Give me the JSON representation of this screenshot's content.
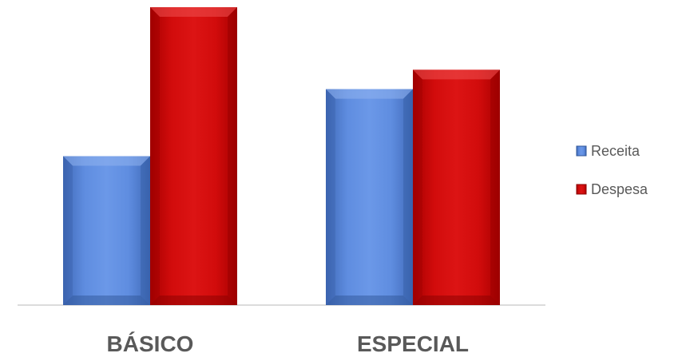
{
  "chart_data": {
    "type": "bar",
    "title": "",
    "xlabel": "",
    "ylabel": "",
    "categories": [
      "BÁSICO",
      "ESPECIAL"
    ],
    "series": [
      {
        "name": "Receita",
        "values": [
          100,
          145
        ],
        "color": "#4f7fd6"
      },
      {
        "name": "Despesa",
        "values": [
          200,
          158
        ],
        "color": "#cc0a0a"
      }
    ],
    "ylim": [
      0,
      200
    ],
    "grid": false,
    "legend_position": "right"
  }
}
